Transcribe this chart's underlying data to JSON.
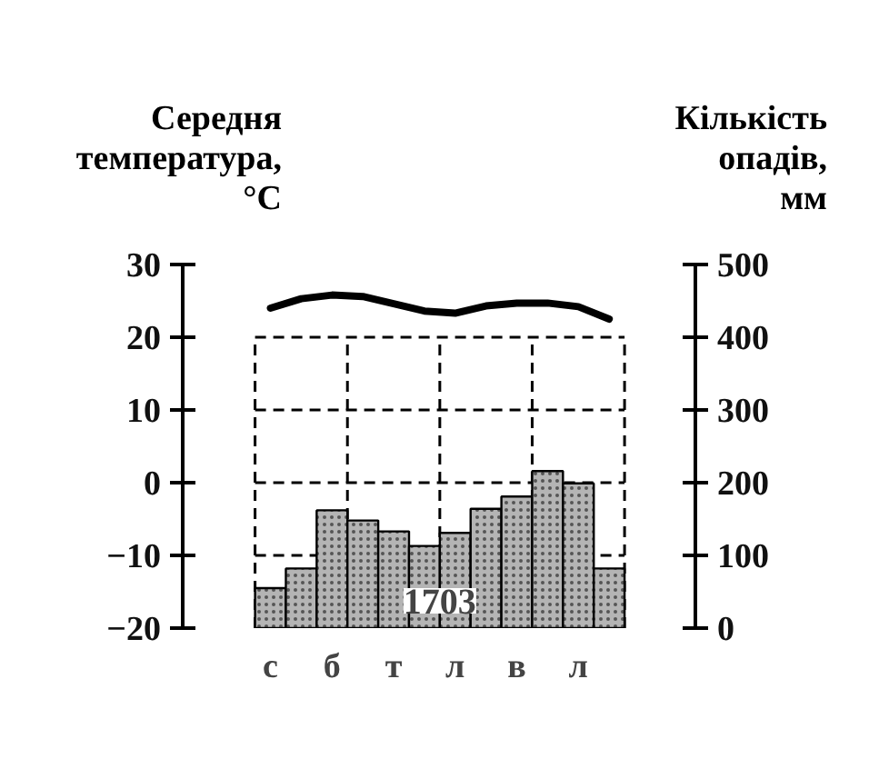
{
  "chart_data": {
    "type": "bar",
    "categories": [
      "с",
      null,
      "б",
      null,
      "т",
      null,
      "л",
      null,
      "в",
      null,
      "л",
      null
    ],
    "series": [
      {
        "axis": "y2",
        "color": "#b4b4b4",
        "values": [
          55,
          82,
          162,
          148,
          133,
          113,
          131,
          164,
          181,
          216,
          199,
          82
        ]
      },
      {
        "type": "line",
        "color": "#000000",
        "values": [
          24.0,
          25.3,
          25.8,
          25.6,
          24.6,
          23.6,
          23.3,
          24.3,
          24.7,
          24.7,
          24.2,
          22.5
        ]
      }
    ],
    "ylabel": "Середня температура, °C",
    "y2label": "Кількість опадів, мм",
    "ylim": [
      -20,
      30
    ],
    "yticks": [
      -20,
      -10,
      0,
      10,
      20,
      30
    ],
    "y2lim": [
      0,
      500
    ],
    "y2ticks": [
      0,
      100,
      200,
      300,
      400,
      500
    ],
    "grid": true,
    "annotations": [
      "1703"
    ]
  }
}
